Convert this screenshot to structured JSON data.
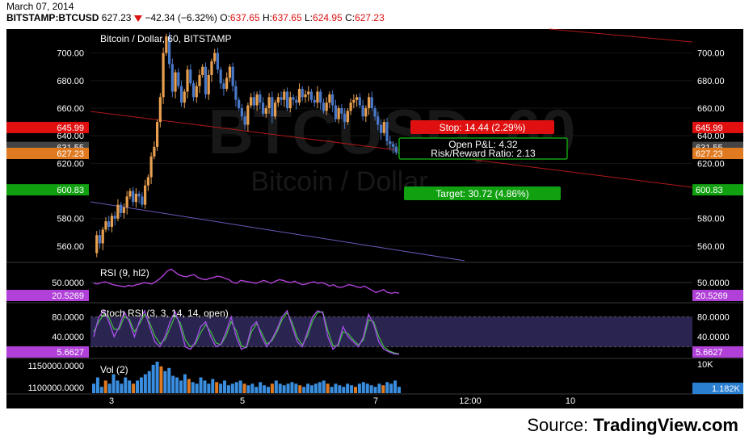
{
  "header": {
    "date": "March 07, 2014",
    "symbol": "BITSTAMP:BTCUSD",
    "price": "627.23",
    "change": "−42.34 (−6.32%)",
    "o_label": "O:",
    "o": "637.65",
    "h_label": "H:",
    "h": "637.65",
    "l_label": "L:",
    "l": "624.95",
    "c_label": "C:",
    "c": "627.23"
  },
  "source": {
    "prefix": "Source: ",
    "brand": "TradingView.com"
  },
  "colors": {
    "bg": "#000000",
    "up": "#e8a050",
    "down": "#4a78c8",
    "stop": "#e01010",
    "target": "#10a010",
    "rsi": "#b040d8",
    "stoch_k": "#a050e0",
    "stoch_d": "#40c040",
    "vol": "#3a8ee0"
  },
  "chart_data": [
    {
      "type": "candlestick",
      "title": "Bitcoin / Dollar, 60, BITSTAMP",
      "watermark_symbol": "BTCUSD, 60",
      "watermark_name": "Bitcoin / Dollar",
      "x_ticks": [
        "3",
        "5",
        "7",
        "12:00",
        "10"
      ],
      "y_ticks": [
        "700.00",
        "680.00",
        "660.00",
        "640.00",
        "620.00",
        "580.00",
        "560.00"
      ],
      "ylim": [
        550,
        715
      ],
      "price_labels": [
        {
          "value": 645.99,
          "text": "645.99",
          "kind": "stop"
        },
        {
          "value": 631.55,
          "text": "631.55",
          "kind": "entry"
        },
        {
          "value": 627.23,
          "text": "627.23",
          "kind": "last"
        },
        {
          "value": 600.83,
          "text": "600.83",
          "kind": "target"
        }
      ],
      "position": {
        "stop": "Stop: 14.44 (2.29%)",
        "open_pl": "Open P&L: 4.32",
        "rr": "Risk/Reward Ratio: 2.13",
        "target": "Target: 30.72 (4.86%)"
      },
      "close_path": [
        555,
        568,
        562,
        572,
        578,
        574,
        582,
        580,
        590,
        584,
        588,
        596,
        600,
        592,
        598,
        596,
        590,
        604,
        610,
        625,
        632,
        650,
        668,
        700,
        712,
        692,
        672,
        686,
        676,
        664,
        672,
        688,
        678,
        668,
        676,
        684,
        690,
        670,
        684,
        694,
        700,
        688,
        678,
        674,
        682,
        690,
        676,
        666,
        660,
        654,
        648,
        662,
        668,
        662,
        670,
        664,
        656,
        660,
        668,
        654,
        664,
        668,
        666,
        672,
        660,
        668,
        666,
        664,
        674,
        668,
        670,
        672,
        666,
        664,
        672,
        664,
        658,
        664,
        670,
        662,
        652,
        660,
        656,
        650,
        658,
        664,
        666,
        668,
        662,
        654,
        660,
        668,
        660,
        654,
        648,
        642,
        650,
        636,
        634,
        632,
        628,
        627
      ]
    },
    {
      "type": "line",
      "title": "RSI (9, hl2)",
      "label": "20.5269",
      "y_ticks": [
        "50.0000"
      ],
      "ylim": [
        0,
        100
      ],
      "values": [
        48,
        46,
        50,
        52,
        48,
        44,
        42,
        40,
        38,
        42,
        40,
        44,
        46,
        50,
        48,
        46,
        52,
        60,
        70,
        82,
        88,
        80,
        72,
        68,
        66,
        70,
        72,
        64,
        60,
        58,
        62,
        64,
        68,
        66,
        62,
        58,
        50,
        48,
        56,
        54,
        52,
        50,
        48,
        52,
        56,
        52,
        48,
        54,
        58,
        56,
        52,
        50,
        54,
        48,
        44,
        46,
        50,
        52,
        48,
        50,
        46,
        40,
        44,
        38,
        36,
        40,
        44,
        42,
        38,
        36,
        40,
        34,
        28,
        22,
        26,
        30,
        22,
        20,
        22,
        20
      ]
    },
    {
      "type": "line",
      "title": "Stoch RSI (3, 3, 14, 14, open)",
      "label": "5.6627",
      "y_ticks": [
        "80.0000",
        "40.0000"
      ],
      "ylim": [
        0,
        100
      ],
      "series_k": [
        40,
        80,
        92,
        70,
        40,
        60,
        90,
        70,
        40,
        72,
        92,
        60,
        30,
        20,
        40,
        70,
        90,
        60,
        20,
        15,
        30,
        60,
        70,
        40,
        20,
        25,
        50,
        80,
        40,
        15,
        20,
        60,
        70,
        40,
        20,
        35,
        55,
        80,
        92,
        60,
        30,
        20,
        50,
        80,
        92,
        88,
        40,
        15,
        25,
        60,
        40,
        30,
        20,
        40,
        85,
        65,
        30,
        15,
        10,
        6,
        5
      ],
      "series_d": [
        50,
        70,
        85,
        78,
        55,
        55,
        80,
        75,
        50,
        66,
        85,
        68,
        42,
        26,
        34,
        58,
        82,
        68,
        34,
        20,
        26,
        48,
        64,
        50,
        28,
        24,
        42,
        70,
        52,
        22,
        18,
        50,
        66,
        48,
        26,
        32,
        50,
        74,
        88,
        68,
        38,
        24,
        42,
        72,
        88,
        90,
        52,
        22,
        22,
        50,
        46,
        34,
        24,
        34,
        74,
        70,
        40,
        20,
        12,
        8,
        6
      ]
    },
    {
      "type": "bar",
      "title": "Vol (2)",
      "label": "1.182K",
      "y_ticks": [
        "1150000.0000",
        "1100000.0000"
      ],
      "right_tick": "10K",
      "values": [
        0.3,
        0.5,
        0.2,
        0.4,
        0.3,
        0.6,
        0.4,
        0.3,
        0.5,
        0.4,
        0.3,
        0.4,
        0.5,
        0.6,
        0.7,
        0.9,
        1.0,
        0.85,
        0.7,
        0.8,
        0.55,
        0.5,
        0.4,
        0.6,
        0.45,
        0.35,
        0.3,
        0.5,
        0.4,
        0.3,
        0.45,
        0.35,
        0.3,
        0.4,
        0.25,
        0.3,
        0.35,
        0.4,
        0.3,
        0.25,
        0.3,
        0.2,
        0.35,
        0.25,
        0.2,
        0.3,
        0.4,
        0.3,
        0.25,
        0.3,
        0.35,
        0.3,
        0.25,
        0.2,
        0.3,
        0.25,
        0.3,
        0.35,
        0.4,
        0.3,
        0.2,
        0.3,
        0.25,
        0.2,
        0.3,
        0.25,
        0.2,
        0.3,
        0.35,
        0.3,
        0.25,
        0.2,
        0.3,
        0.25,
        0.35,
        0.3,
        0.4,
        0.2
      ]
    }
  ]
}
